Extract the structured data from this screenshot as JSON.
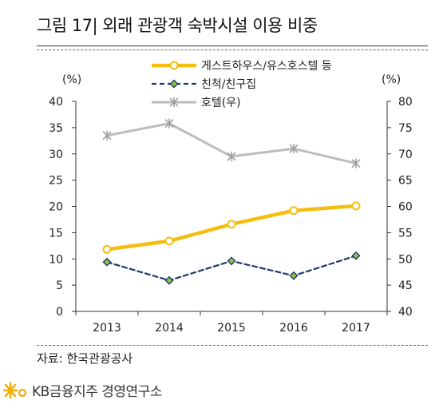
{
  "header": {
    "title": "그림 17| 외래 관광객 숙박시설 이용 비중"
  },
  "footer": {
    "source": "자료: 한국관광공사",
    "brand": "KB금융지주 경영연구소"
  },
  "colors": {
    "guesthouse": "#F5BE0F",
    "friends": "#1F3A6E",
    "friends_marker": "#8DC53E",
    "hotel": "#BDBDBD",
    "brand": "#F2A900"
  },
  "chart_data": {
    "type": "line",
    "categories": [
      "2013",
      "2014",
      "2015",
      "2016",
      "2017"
    ],
    "y_left": {
      "label": "(%)",
      "min": 0,
      "max": 40,
      "ticks": [
        "0",
        "5",
        "10",
        "15",
        "20",
        "25",
        "30",
        "35",
        "40"
      ]
    },
    "y_right": {
      "label": "(%)",
      "min": 40,
      "max": 80,
      "ticks": [
        "40",
        "45",
        "50",
        "55",
        "60",
        "65",
        "70",
        "75",
        "80"
      ]
    },
    "legend_position": "top-center",
    "grid": false,
    "series": [
      {
        "name": "게스트하우스/유스호스텔 등",
        "axis": "left",
        "style": "solid-thick",
        "marker": "circle",
        "values": [
          11.8,
          13.4,
          16.6,
          19.2,
          20.1
        ]
      },
      {
        "name": "친척/친구집",
        "axis": "left",
        "style": "dashed",
        "marker": "diamond",
        "values": [
          9.4,
          5.9,
          9.6,
          6.8,
          10.6
        ]
      },
      {
        "name": "호텔(우)",
        "axis": "right",
        "style": "solid",
        "marker": "asterisk",
        "values": [
          73.5,
          75.8,
          69.5,
          71.0,
          68.2
        ]
      }
    ]
  }
}
